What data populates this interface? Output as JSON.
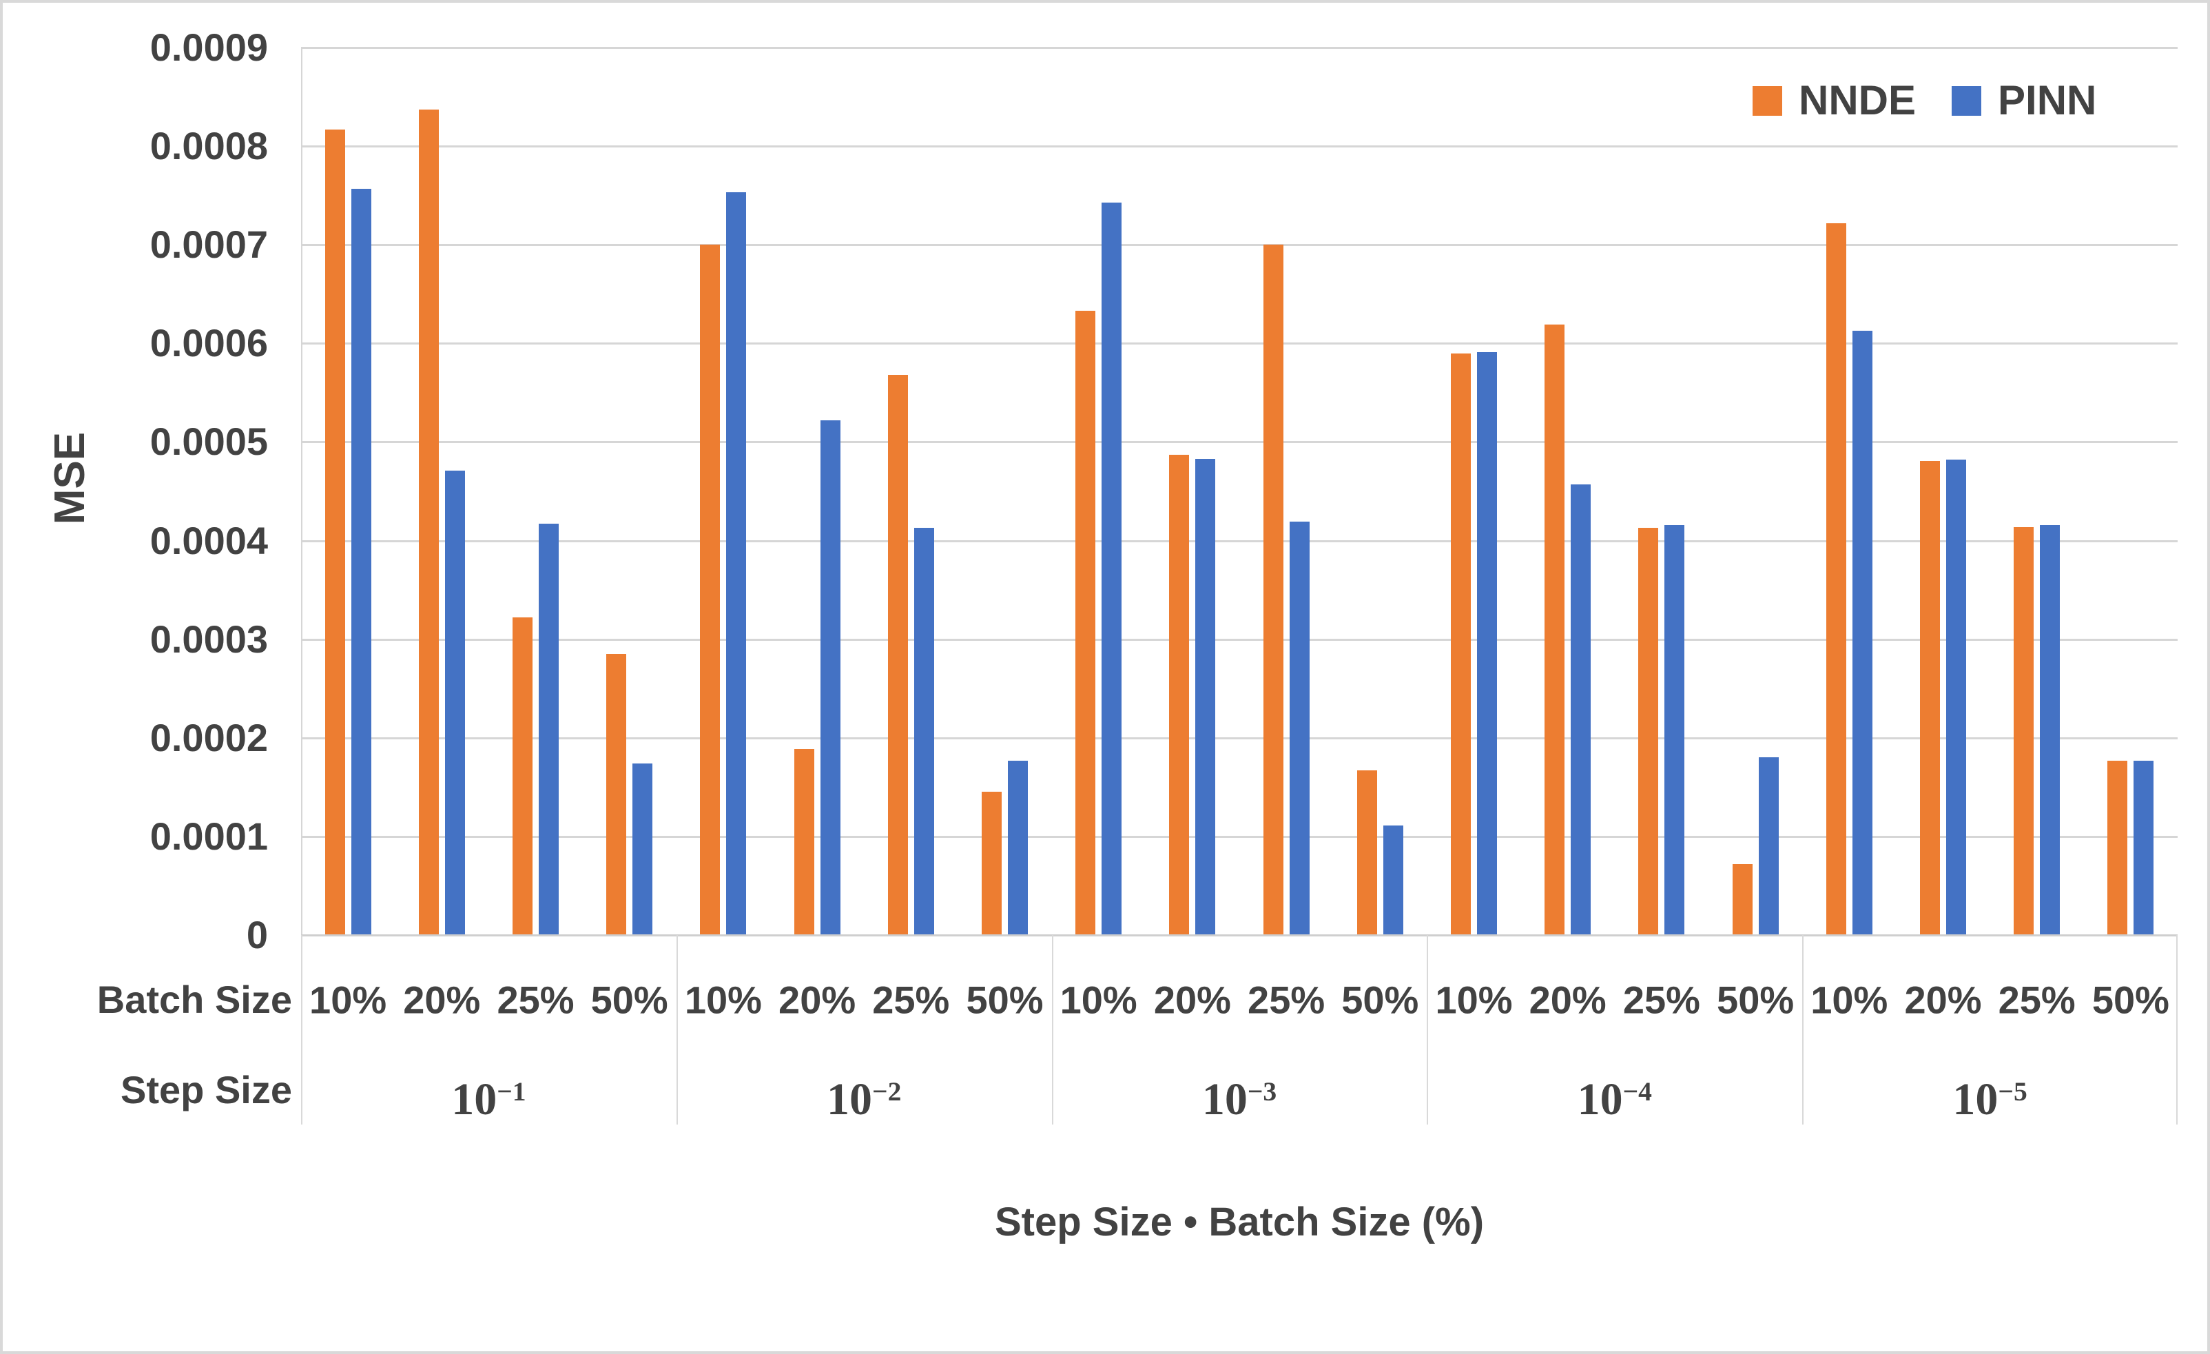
{
  "colors": {
    "background": "#FFFFFF",
    "frame_border": "#D9D9D9",
    "gridline": "#D6D6D6",
    "axis_line": "#CFCFCF",
    "text": "#424242"
  },
  "chart_data": {
    "type": "bar",
    "title": "",
    "xlabel": "Step Size • Batch Size (%)",
    "ylabel": "MSE",
    "ylim": [
      0,
      0.0009
    ],
    "ytick_step": 0.0001,
    "y_tick_labels": [
      "0.0009",
      "0.0008",
      "0.0007",
      "0.0006",
      "0.0005",
      "0.0004",
      "0.0003",
      "0.0002",
      "0.0001",
      "0"
    ],
    "grid": true,
    "legend_position": "top-right",
    "row_labels": {
      "batch": "Batch Size",
      "step": "Step Size"
    },
    "step_sizes": [
      "10^-1",
      "10^-2",
      "10^-3",
      "10^-4",
      "10^-5"
    ],
    "batch_sizes": [
      "10%",
      "20%",
      "25%",
      "50%"
    ],
    "series": [
      {
        "name": "NNDE",
        "color": "#ED7D31",
        "values": [
          [
            0.000817,
            0.000837,
            0.000322,
            0.000285
          ],
          [
            0.0007,
            0.000189,
            0.000568,
            0.000145
          ],
          [
            0.000633,
            0.000487,
            0.0007,
            0.000167
          ],
          [
            0.00059,
            0.000619,
            0.000413,
            7.2e-05
          ],
          [
            0.000722,
            0.000481,
            0.000414,
            0.000177
          ]
        ]
      },
      {
        "name": "PINN",
        "color": "#4472C4",
        "values": [
          [
            0.000757,
            0.000471,
            0.000417,
            0.000174
          ],
          [
            0.000753,
            0.000522,
            0.000413,
            0.000177
          ],
          [
            0.000743,
            0.000483,
            0.000419,
            0.000111
          ],
          [
            0.000591,
            0.000457,
            0.000416,
            0.00018
          ],
          [
            0.000613,
            0.000482,
            0.000416,
            0.000177
          ]
        ]
      }
    ]
  }
}
